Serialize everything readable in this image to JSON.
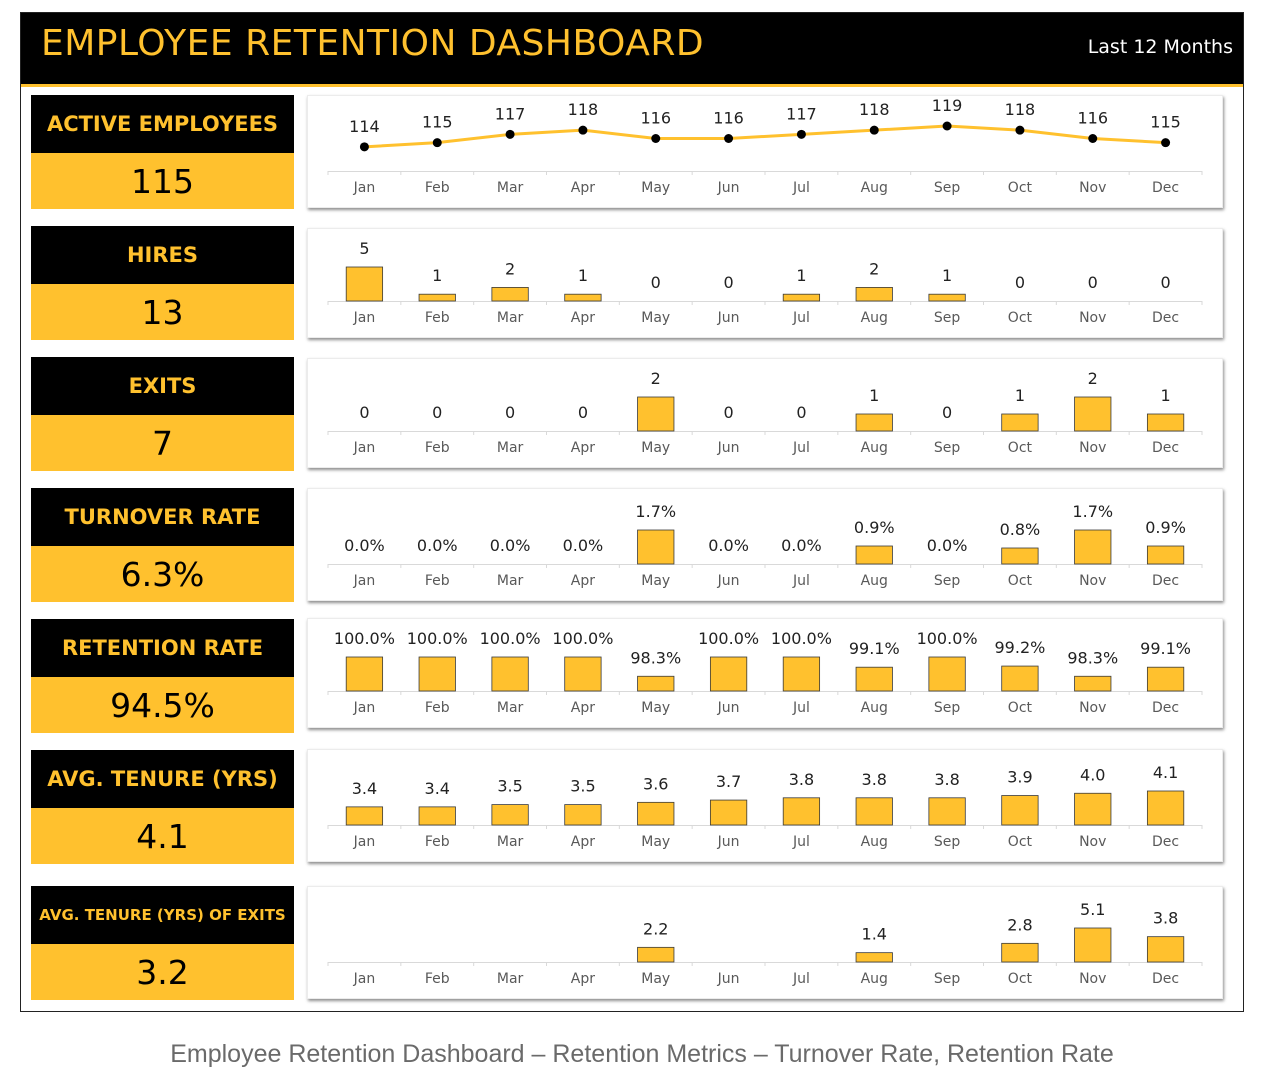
{
  "header": {
    "title": "EMPLOYEE RETENTION DASHBOARD",
    "period": "Last 12 Months"
  },
  "caption": "Employee Retention Dashboard – Retention Metrics – Turnover Rate, Retention Rate",
  "colors": {
    "accent": "#FFC12E",
    "header_bg": "#000000",
    "line": "#FFC12E",
    "marker": "#000000"
  },
  "kpis": [
    {
      "label": "ACTIVE EMPLOYEES",
      "value": "115"
    },
    {
      "label": "HIRES",
      "value": "13"
    },
    {
      "label": "EXITS",
      "value": "7"
    },
    {
      "label": "TURNOVER RATE",
      "value": "6.3%"
    },
    {
      "label": "RETENTION RATE",
      "value": "94.5%"
    },
    {
      "label": "AVG. TENURE (YRS)",
      "value": "4.1"
    },
    {
      "label": "AVG. TENURE (YRS) OF EXITS",
      "value": "3.2"
    }
  ],
  "chart_data": [
    {
      "type": "line",
      "categories": [
        "Jan",
        "Feb",
        "Mar",
        "Apr",
        "May",
        "Jun",
        "Jul",
        "Aug",
        "Sep",
        "Oct",
        "Nov",
        "Dec"
      ],
      "values": [
        114,
        115,
        117,
        118,
        116,
        116,
        117,
        118,
        119,
        118,
        116,
        115
      ],
      "labels": [
        "114",
        "115",
        "117",
        "118",
        "116",
        "116",
        "117",
        "118",
        "119",
        "118",
        "116",
        "115"
      ],
      "title": "",
      "grid": false,
      "legend": "none"
    },
    {
      "type": "bar",
      "categories": [
        "Jan",
        "Feb",
        "Mar",
        "Apr",
        "May",
        "Jun",
        "Jul",
        "Aug",
        "Sep",
        "Oct",
        "Nov",
        "Dec"
      ],
      "values": [
        5,
        1,
        2,
        1,
        0,
        0,
        1,
        2,
        1,
        0,
        0,
        0
      ],
      "labels": [
        "5",
        "1",
        "2",
        "1",
        "0",
        "0",
        "1",
        "2",
        "1",
        "0",
        "0",
        "0"
      ],
      "title": "",
      "grid": false,
      "legend": "none"
    },
    {
      "type": "bar",
      "categories": [
        "Jan",
        "Feb",
        "Mar",
        "Apr",
        "May",
        "Jun",
        "Jul",
        "Aug",
        "Sep",
        "Oct",
        "Nov",
        "Dec"
      ],
      "values": [
        0,
        0,
        0,
        0,
        2,
        0,
        0,
        1,
        0,
        1,
        2,
        1
      ],
      "labels": [
        "0",
        "0",
        "0",
        "0",
        "2",
        "0",
        "0",
        "1",
        "0",
        "1",
        "2",
        "1"
      ],
      "title": "",
      "grid": false,
      "legend": "none"
    },
    {
      "type": "bar",
      "categories": [
        "Jan",
        "Feb",
        "Mar",
        "Apr",
        "May",
        "Jun",
        "Jul",
        "Aug",
        "Sep",
        "Oct",
        "Nov",
        "Dec"
      ],
      "values": [
        0.0,
        0.0,
        0.0,
        0.0,
        1.7,
        0.0,
        0.0,
        0.9,
        0.0,
        0.8,
        1.7,
        0.9
      ],
      "labels": [
        "0.0%",
        "0.0%",
        "0.0%",
        "0.0%",
        "1.7%",
        "0.0%",
        "0.0%",
        "0.9%",
        "0.0%",
        "0.8%",
        "1.7%",
        "0.9%"
      ],
      "unit": "%",
      "title": "",
      "grid": false,
      "legend": "none"
    },
    {
      "type": "bar",
      "categories": [
        "Jan",
        "Feb",
        "Mar",
        "Apr",
        "May",
        "Jun",
        "Jul",
        "Aug",
        "Sep",
        "Oct",
        "Nov",
        "Dec"
      ],
      "values": [
        100.0,
        100.0,
        100.0,
        100.0,
        98.3,
        100.0,
        100.0,
        99.1,
        100.0,
        99.2,
        98.3,
        99.1
      ],
      "labels": [
        "100.0%",
        "100.0%",
        "100.0%",
        "100.0%",
        "98.3%",
        "100.0%",
        "100.0%",
        "99.1%",
        "100.0%",
        "99.2%",
        "98.3%",
        "99.1%"
      ],
      "unit": "%",
      "ylim": [
        97,
        100
      ],
      "title": "",
      "grid": false,
      "legend": "none"
    },
    {
      "type": "bar",
      "categories": [
        "Jan",
        "Feb",
        "Mar",
        "Apr",
        "May",
        "Jun",
        "Jul",
        "Aug",
        "Sep",
        "Oct",
        "Nov",
        "Dec"
      ],
      "values": [
        3.4,
        3.4,
        3.5,
        3.5,
        3.6,
        3.7,
        3.8,
        3.8,
        3.8,
        3.9,
        4.0,
        4.1
      ],
      "labels": [
        "3.4",
        "3.4",
        "3.5",
        "3.5",
        "3.6",
        "3.7",
        "3.8",
        "3.8",
        "3.8",
        "3.9",
        "4.0",
        "4.1"
      ],
      "ylim": [
        2.6,
        4.1
      ],
      "title": "",
      "grid": false,
      "legend": "none"
    },
    {
      "type": "bar",
      "categories": [
        "Jan",
        "Feb",
        "Mar",
        "Apr",
        "May",
        "Jun",
        "Jul",
        "Aug",
        "Sep",
        "Oct",
        "Nov",
        "Dec"
      ],
      "values": [
        null,
        null,
        null,
        null,
        2.2,
        null,
        null,
        1.4,
        null,
        2.8,
        5.1,
        3.8
      ],
      "labels": [
        "",
        "",
        "",
        "",
        "2.2",
        "",
        "",
        "1.4",
        "",
        "2.8",
        "5.1",
        "3.8"
      ],
      "ylim": [
        0,
        5.1
      ],
      "title": "",
      "grid": false,
      "legend": "none"
    }
  ]
}
